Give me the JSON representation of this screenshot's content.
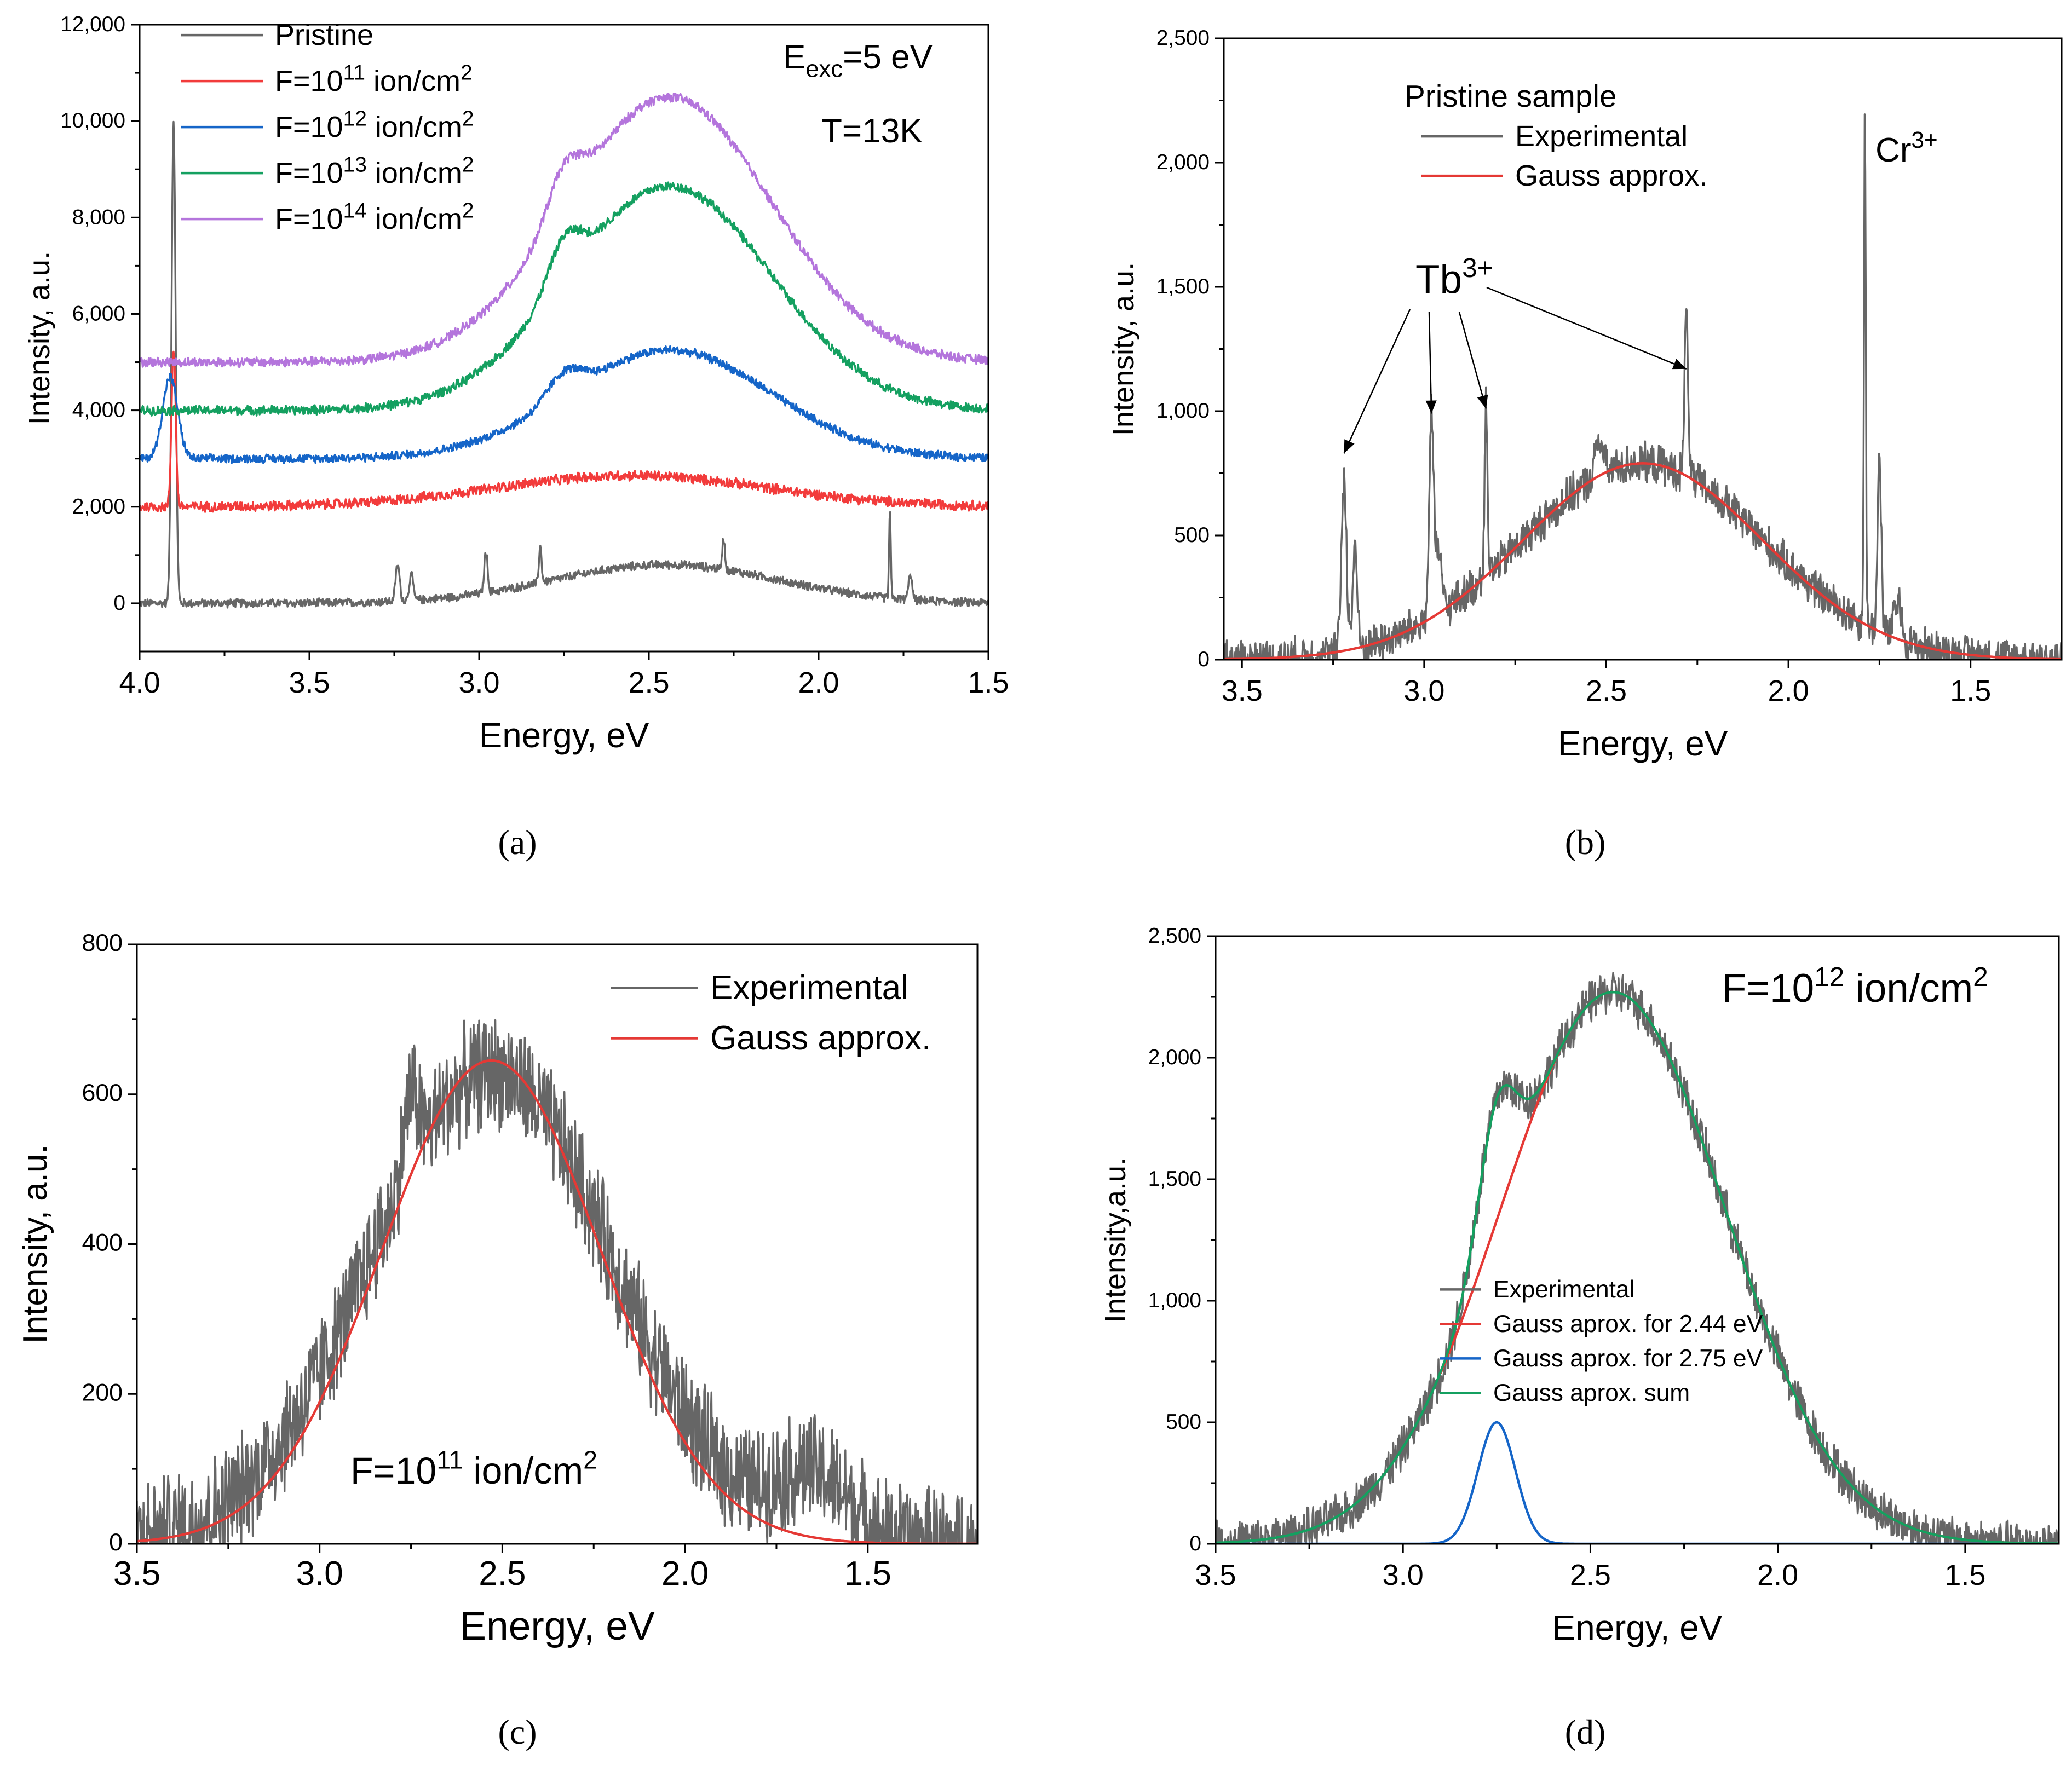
{
  "chart_data": [
    {
      "id": "a",
      "type": "line",
      "caption": "(a)",
      "xlabel": "Energy, eV",
      "ylabel": "Intensity, a.u.",
      "xlim": [
        4.0,
        1.5
      ],
      "ylim": [
        -1000,
        12000
      ],
      "xticks": [
        4.0,
        3.5,
        3.0,
        2.5,
        2.0,
        1.5
      ],
      "xtick_labels": [
        "4.0",
        "3.5",
        "3.0",
        "2.5",
        "2.0",
        "1.5"
      ],
      "yticks": [
        0,
        2000,
        4000,
        6000,
        8000,
        10000,
        12000
      ],
      "ytick_labels": [
        "0",
        "2,000",
        "4,000",
        "6,000",
        "8,000",
        "10,000",
        "12,000"
      ],
      "legend_position": "top-left",
      "annotations": [
        {
          "id": "exc",
          "base": "E",
          "sub": "exc",
          "rest": "=5 eV",
          "anchor_x": 3.2,
          "anchor_y": 11000
        },
        {
          "id": "temp",
          "text": "T=13K",
          "anchor_x": 3.2,
          "anchor_y": 9800
        }
      ],
      "series": [
        {
          "name": "Pristine",
          "legend_base": "Pristine",
          "color": "#666666",
          "offset": 0,
          "components": [
            [
              800,
              2.45,
              0.33
            ]
          ],
          "peaks": [
            [
              10000,
              3.9,
              0.006
            ],
            [
              750,
              3.24,
              0.006
            ],
            [
              520,
              3.2,
              0.006
            ],
            [
              850,
              2.98,
              0.005
            ],
            [
              750,
              2.82,
              0.004
            ],
            [
              650,
              2.28,
              0.004
            ],
            [
              1800,
              1.79,
              0.0025
            ],
            [
              550,
              1.73,
              0.005
            ]
          ],
          "noise": 100
        },
        {
          "name": "F=10^11 ion/cm^2",
          "legend_base": "F=10",
          "legend_exp": "11",
          "legend_rest": " ion/cm",
          "legend_exp2": "2",
          "color": "#f23b3b",
          "offset": 2000,
          "components": [
            [
              650,
              2.55,
              0.4
            ]
          ],
          "peaks": [
            [
              3300,
              3.9,
              0.006
            ]
          ],
          "noise": 120
        },
        {
          "name": "F=10^12 ion/cm^2",
          "legend_base": "F=10",
          "legend_exp": "12",
          "legend_rest": " ion/cm",
          "legend_exp2": "2",
          "color": "#1565c8",
          "offset": 3000,
          "components": [
            [
              2250,
              2.44,
              0.3
            ],
            [
              500,
              2.75,
              0.05
            ]
          ],
          "peaks": [
            [
              1700,
              3.91,
              0.022
            ]
          ],
          "noise": 100
        },
        {
          "name": "F=10^13 ion/cm^2",
          "legend_base": "F=10",
          "legend_exp": "13",
          "legend_rest": " ion/cm",
          "legend_exp2": "2",
          "color": "#14a060",
          "offset": 4000,
          "components": [
            [
              4650,
              2.44,
              0.3
            ],
            [
              900,
              2.75,
              0.05
            ]
          ],
          "peaks": [],
          "noise": 110
        },
        {
          "name": "F=10^14 ion/cm^2",
          "legend_base": "F=10",
          "legend_exp": "14",
          "legend_rest": " ion/cm",
          "legend_exp2": "2",
          "color": "#b475dc",
          "offset": 5000,
          "components": [
            [
              5500,
              2.44,
              0.3
            ],
            [
              900,
              2.75,
              0.05
            ]
          ],
          "peaks": [],
          "noise": 110
        }
      ]
    },
    {
      "id": "b",
      "type": "line",
      "caption": "(b)",
      "xlabel": "Energy, eV",
      "ylabel": "Intensity, a.u.",
      "xlim": [
        3.55,
        1.25
      ],
      "ylim": [
        0,
        2500
      ],
      "xticks": [
        3.5,
        3.0,
        2.5,
        2.0,
        1.5
      ],
      "xtick_labels": [
        "3.5",
        "3.0",
        "2.5",
        "2.0",
        "1.5"
      ],
      "yticks": [
        0,
        500,
        1000,
        1500,
        2000,
        2500
      ],
      "ytick_labels": [
        "0",
        "500",
        "1,000",
        "1,500",
        "2,000",
        "2,500"
      ],
      "legend_title": "Pristine sample",
      "legend_position": "top-center",
      "annotations": [
        {
          "id": "tb",
          "base": "Tb",
          "sup": "3+",
          "anchor_x": 2.98,
          "anchor_y": 1470,
          "arrows_to": [
            [
              3.22,
              830
            ],
            [
              2.98,
              990
            ],
            [
              2.83,
              1010
            ],
            [
              2.28,
              1170
            ]
          ]
        },
        {
          "id": "cr",
          "base": "Cr",
          "sup": "3+",
          "anchor_x": 1.77,
          "anchor_y": 1950
        }
      ],
      "series": [
        {
          "name": "Experimental",
          "legend_base": "Experimental",
          "color": "#666666",
          "offset": 0,
          "components": [
            [
              790,
              2.4,
              0.33
            ]
          ],
          "peaks": [
            [
              700,
              3.22,
              0.007
            ],
            [
              420,
              3.19,
              0.006
            ],
            [
              820,
              2.98,
              0.006
            ],
            [
              250,
              2.96,
              0.008
            ],
            [
              700,
              2.83,
              0.004
            ],
            [
              150,
              2.52,
              0.01
            ],
            [
              650,
              2.28,
              0.005
            ],
            [
              2100,
              1.79,
              0.0025
            ],
            [
              700,
              1.75,
              0.005
            ],
            [
              150,
              1.7,
              0.01
            ]
          ],
          "noise": 90
        },
        {
          "name": "Gauss approx.",
          "legend_base": "Gauss approx.",
          "color": "#e53935",
          "offset": 0,
          "components": [
            [
              790,
              2.4,
              0.33
            ]
          ],
          "peaks": [],
          "noise": 0
        }
      ]
    },
    {
      "id": "c",
      "type": "line",
      "caption": "(c)",
      "xlabel": "Energy, eV",
      "ylabel": "Intensity, a.u.",
      "xlim": [
        3.5,
        1.2
      ],
      "ylim": [
        0,
        800
      ],
      "xticks": [
        3.5,
        3.0,
        2.5,
        2.0,
        1.5
      ],
      "xtick_labels": [
        "3.5",
        "3.0",
        "2.5",
        "2.0",
        "1.5"
      ],
      "yticks": [
        0,
        200,
        400,
        600,
        800
      ],
      "ytick_labels": [
        "0",
        "200",
        "400",
        "600",
        "800"
      ],
      "legend_position": "top-right",
      "annotations": [
        {
          "id": "fluence",
          "base": "F=10",
          "sup": "11",
          "rest": " ion/cm",
          "sup2": "2",
          "anchor_x": 2.96,
          "anchor_y": 95
        }
      ],
      "series": [
        {
          "name": "Experimental",
          "legend_base": "Experimental",
          "color": "#666666",
          "offset": 0,
          "components": [
            [
              630,
              2.53,
              0.33
            ],
            [
              80,
              1.65,
              0.1
            ]
          ],
          "peaks": [
            [
              100,
              2.75,
              0.02
            ]
          ],
          "noise": 85
        },
        {
          "name": "Gauss approx.",
          "legend_base": "Gauss approx.",
          "color": "#e53935",
          "offset": 0,
          "components": [
            [
              645,
              2.53,
              0.3
            ]
          ],
          "peaks": [],
          "noise": 0
        }
      ]
    },
    {
      "id": "d",
      "type": "line",
      "caption": "(d)",
      "xlabel": "Energy, eV",
      "ylabel": "Intensity,a.u.",
      "xlim": [
        3.5,
        1.25
      ],
      "ylim": [
        0,
        2500
      ],
      "xticks": [
        3.5,
        3.0,
        2.5,
        2.0,
        1.5
      ],
      "xtick_labels": [
        "3.5",
        "3.0",
        "2.5",
        "2.0",
        "1.5"
      ],
      "yticks": [
        0,
        500,
        1000,
        1500,
        2000,
        2500
      ],
      "ytick_labels": [
        "0",
        "500",
        "1,000",
        "1,500",
        "2,000",
        "2,500"
      ],
      "legend_position": "bottom-center",
      "annotations": [
        {
          "id": "fluence",
          "base": "F=10",
          "sup": "12",
          "rest": " ion/cm",
          "sup2": "2",
          "anchor_x": 2.3,
          "anchor_y": 2230
        }
      ],
      "series": [
        {
          "name": "Experimental",
          "legend_base": "Experimental",
          "color": "#666666",
          "offset": 0,
          "components": [
            [
              2270,
              2.44,
              0.3
            ],
            [
              500,
              2.75,
              0.05
            ]
          ],
          "peaks": [],
          "noise": 100
        },
        {
          "name": "Gauss aprox. for 2.44 eV",
          "legend_base": "Gauss aprox. for 2.44 eV",
          "color": "#e53935",
          "offset": 0,
          "components": [
            [
              2270,
              2.44,
              0.3
            ]
          ],
          "peaks": [],
          "noise": 0,
          "x_range": [
            2.9,
            1.35
          ]
        },
        {
          "name": "Gauss aprox. for 2.75 eV",
          "legend_base": "Gauss aprox. for 2.75 eV",
          "color": "#1565c8",
          "offset": 0,
          "components": [
            [
              500,
              2.75,
              0.05
            ]
          ],
          "peaks": [],
          "noise": 0
        },
        {
          "name": "Gauss aprox. sum",
          "legend_base": "Gauss aprox. sum",
          "color": "#14a060",
          "offset": 0,
          "components": [
            [
              2270,
              2.44,
              0.3
            ],
            [
              500,
              2.75,
              0.05
            ]
          ],
          "peaks": [],
          "noise": 0
        }
      ]
    }
  ]
}
